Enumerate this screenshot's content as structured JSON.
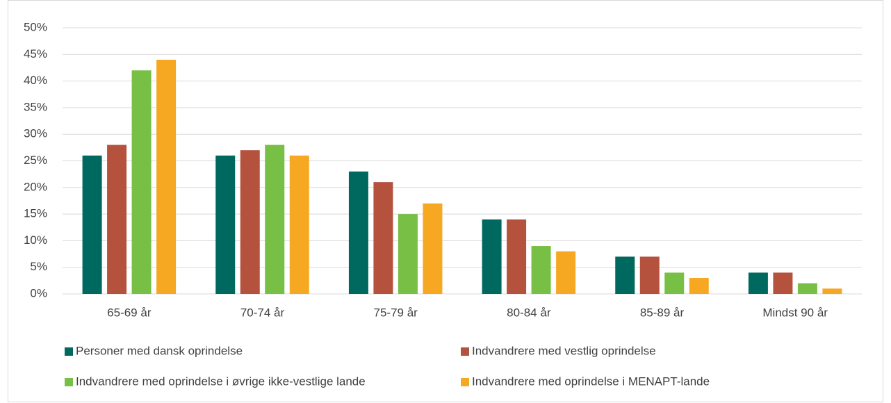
{
  "chart_data": {
    "type": "bar",
    "categories": [
      "65-69 år",
      "70-74 år",
      "75-79 år",
      "80-84 år",
      "85-89 år",
      "Mindst 90 år"
    ],
    "series": [
      {
        "name": "Personer med dansk oprindelse",
        "color": "#00695f",
        "values": [
          26,
          26,
          23,
          14,
          7,
          4
        ]
      },
      {
        "name": "Indvandrere med vestlig oprindelse",
        "color": "#b5523e",
        "values": [
          28,
          27,
          21,
          14,
          7,
          4
        ]
      },
      {
        "name": "Indvandrere med oprindelse i øvrige ikke-vestlige lande",
        "color": "#77bf45",
        "values": [
          42,
          28,
          15,
          9,
          4,
          2
        ]
      },
      {
        "name": "Indvandrere med oprindelse i MENAPT-lande",
        "color": "#f7a823",
        "values": [
          44,
          26,
          17,
          8,
          3,
          1
        ]
      }
    ],
    "ylim": [
      0,
      50
    ],
    "yticks": [
      {
        "value": 0,
        "label": "0%"
      },
      {
        "value": 5,
        "label": "5%"
      },
      {
        "value": 10,
        "label": "10%"
      },
      {
        "value": 15,
        "label": "15%"
      },
      {
        "value": 20,
        "label": "20%"
      },
      {
        "value": 25,
        "label": "25%"
      },
      {
        "value": 30,
        "label": "30%"
      },
      {
        "value": 35,
        "label": "35%"
      },
      {
        "value": 40,
        "label": "40%"
      },
      {
        "value": 45,
        "label": "45%"
      },
      {
        "value": 50,
        "label": "50%"
      }
    ],
    "grid": true,
    "legend": "bottom"
  }
}
